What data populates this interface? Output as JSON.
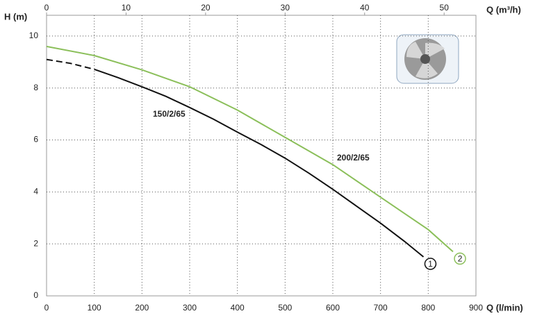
{
  "chart_data": {
    "type": "line",
    "y_label": "H (m)",
    "x_label": "Q (l/min)",
    "x2_label": "Q (m³/h)",
    "xlim": [
      0,
      900
    ],
    "xticks": [
      0,
      100,
      200,
      300,
      400,
      500,
      600,
      700,
      800,
      900
    ],
    "x2lim": [
      0,
      54
    ],
    "x2ticks": [
      0,
      10,
      20,
      30,
      40,
      50
    ],
    "ylim": [
      0,
      10.8
    ],
    "yticks": [
      0,
      2,
      4,
      6,
      8,
      10
    ],
    "grid": true,
    "series": [
      {
        "name": "150/2/65",
        "marker": "1",
        "color": "#111111",
        "dash_until": 100,
        "x": [
          0,
          50,
          100,
          150,
          200,
          250,
          300,
          350,
          400,
          450,
          500,
          550,
          600,
          650,
          700,
          750,
          790
        ],
        "values": [
          9.1,
          8.95,
          8.72,
          8.4,
          8.05,
          7.68,
          7.25,
          6.8,
          6.3,
          5.82,
          5.3,
          4.72,
          4.1,
          3.45,
          2.8,
          2.1,
          1.5
        ]
      },
      {
        "name": "200/2/65",
        "marker": "2",
        "color": "#8bbf5a",
        "x": [
          0,
          100,
          200,
          300,
          400,
          500,
          600,
          700,
          800,
          852
        ],
        "values": [
          9.6,
          9.25,
          8.7,
          8.05,
          7.15,
          6.1,
          5.05,
          3.8,
          2.55,
          1.7
        ]
      }
    ]
  }
}
